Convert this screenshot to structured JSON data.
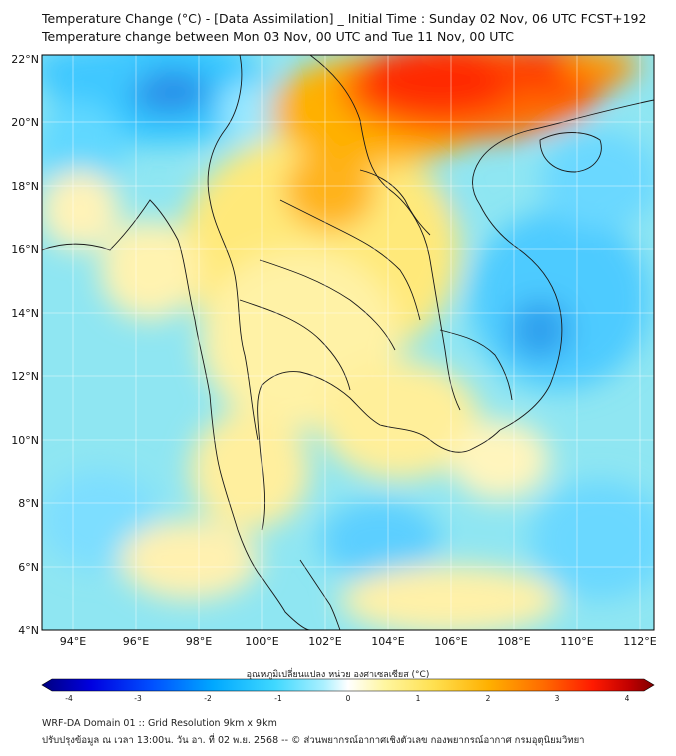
{
  "header": {
    "title_line1": "Temperature Change (°C) - [Data Assimilation] _ Initial Time : Sunday 02 Nov, 06 UTC FCST+192",
    "title_line2": "Temperature change between Mon 03 Nov, 00 UTC and Tue 11 Nov, 00 UTC"
  },
  "map": {
    "lat_labels": [
      "22°N",
      "20°N",
      "18°N",
      "16°N",
      "14°N",
      "12°N",
      "10°N",
      "8°N",
      "6°N",
      "4°N"
    ],
    "lon_labels": [
      "94°E",
      "96°E",
      "98°E",
      "100°E",
      "102°E",
      "104°E",
      "106°E",
      "108°E",
      "110°E",
      "112°E"
    ],
    "lat_range": [
      4,
      22
    ],
    "lon_range": [
      93,
      112.5
    ]
  },
  "colorbar": {
    "title": "อุณหภูมิเปลี่ยนแปลง หน่วย องศาเซลเซียส (°C)",
    "range": [
      -4,
      4
    ],
    "tick_labels": [
      "-4",
      "-3",
      "-2",
      "-1",
      "0",
      "1",
      "2",
      "3",
      "4"
    ],
    "colors": [
      "#00007f",
      "#0000e0",
      "#0050ff",
      "#00a8ff",
      "#3fd8ff",
      "#aaf0ff",
      "#ffffff",
      "#fff6a0",
      "#ffe050",
      "#ffb000",
      "#ff6a00",
      "#ff1a00",
      "#c00000",
      "#7f0000"
    ]
  },
  "footer": {
    "line1": "WRF-DA Domain 01 :: Grid Resolution 9km x 9km",
    "line2": "ปรับปรุงข้อมูล ณ เวลา 13:00น. วัน อา. ที่ 02 พ.ย. 2568 -- © ส่วนพยากรณ์อากาศเชิงตัวเลข กองพยากรณ์อากาศ กรมอุตุนิยมวิทยา"
  }
}
